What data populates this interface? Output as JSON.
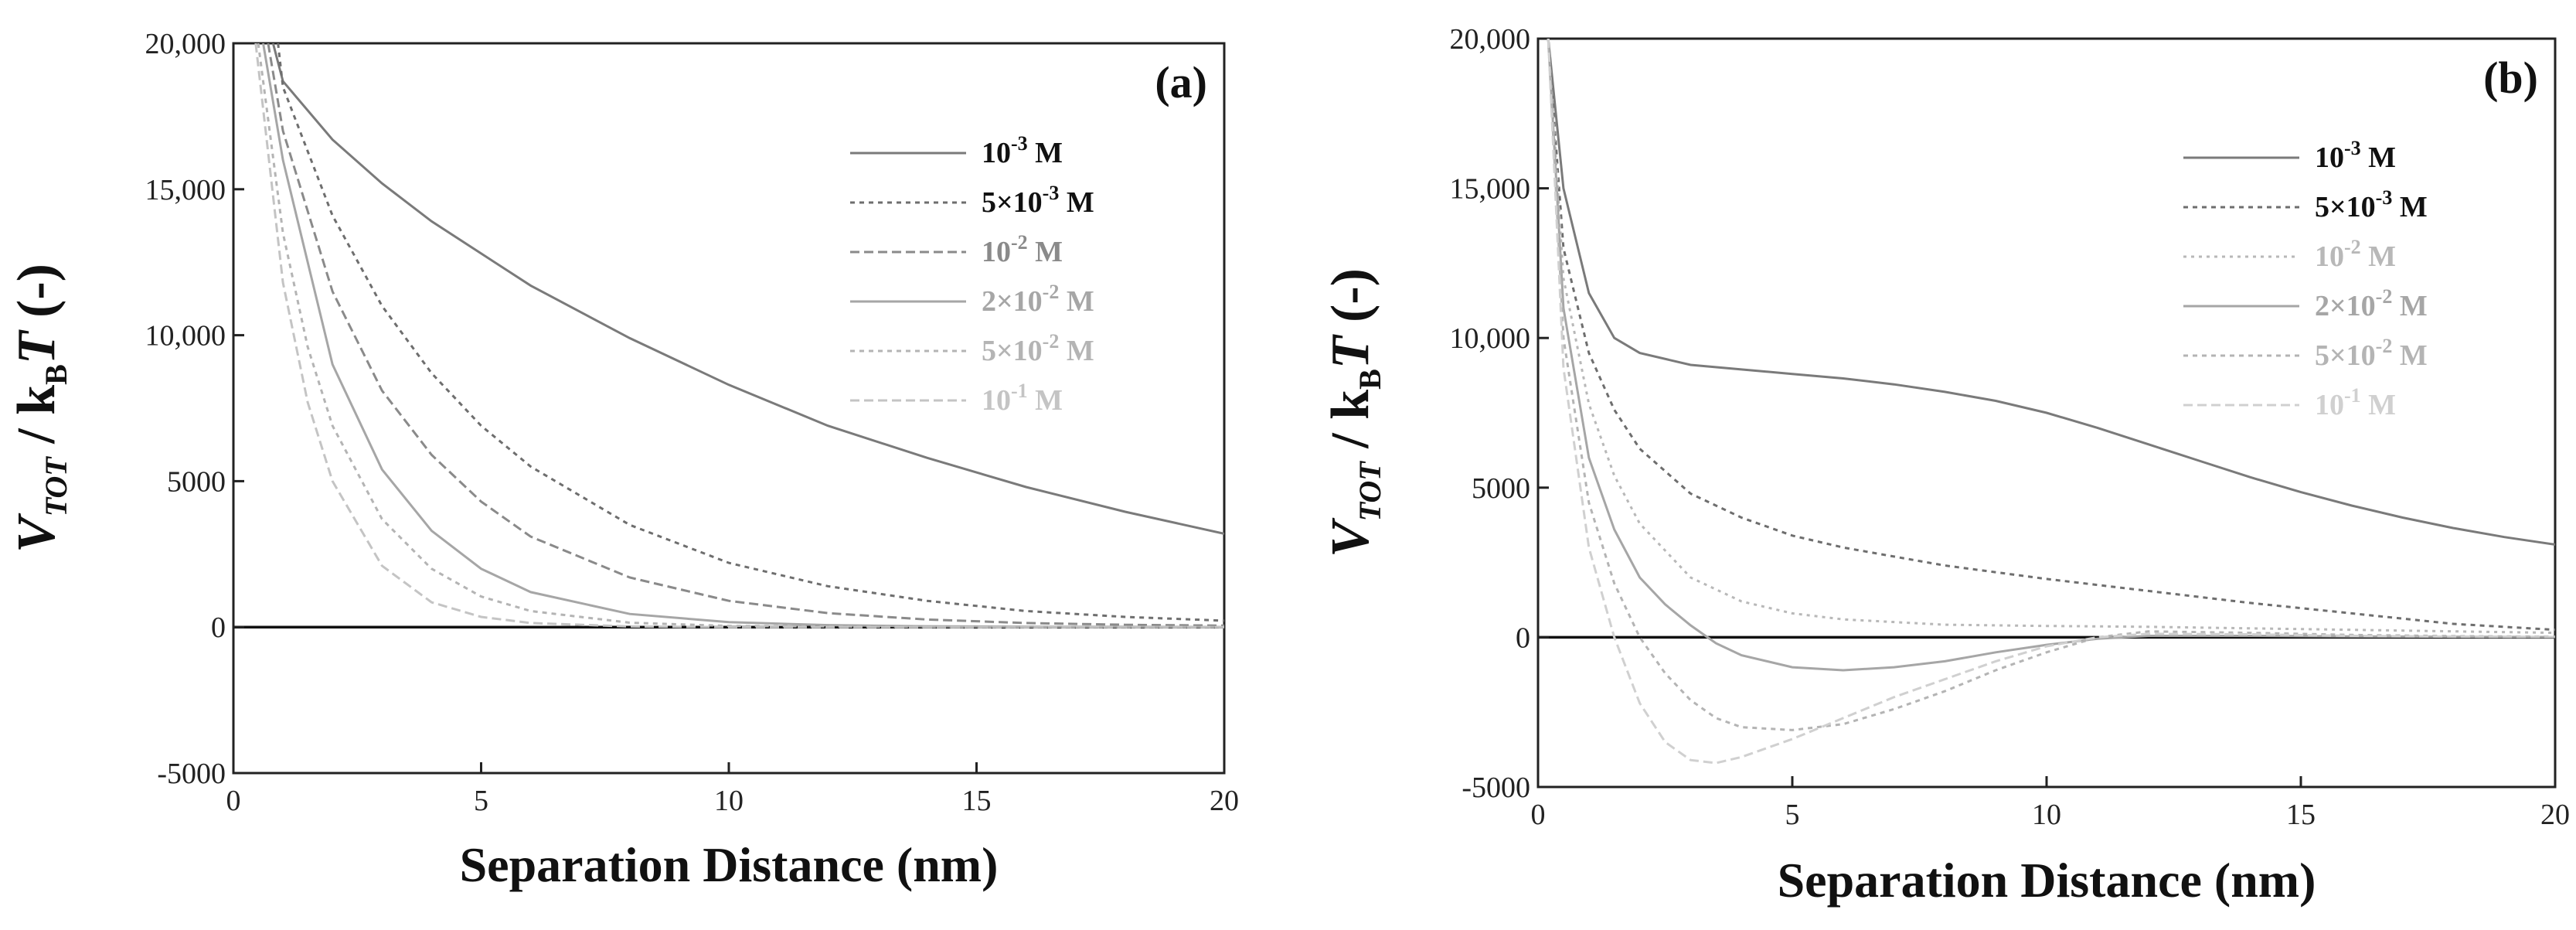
{
  "chart_data": [
    {
      "type": "line",
      "panel_label": "(a)",
      "xlabel": "Separation Distance (nm)",
      "ylabel": {
        "v": "V",
        "sub": "TOT",
        "mid": " / k",
        "sub2": "B",
        "t": "T",
        "unit": " (-)"
      },
      "xlim": [
        0,
        20
      ],
      "ylim": [
        -5000,
        20000
      ],
      "xticks": [
        0,
        5,
        10,
        15,
        20
      ],
      "xtick_labels": [
        "0",
        "5",
        "10",
        "15",
        "20"
      ],
      "yticks": [
        -5000,
        0,
        5000,
        10000,
        15000,
        20000
      ],
      "ytick_labels": [
        "-5000",
        "0",
        "5000",
        "10,000",
        "15,000",
        "20,000"
      ],
      "legend_position": "top-right",
      "series": [
        {
          "name": "10^-3 M",
          "label_base": "10",
          "label_exp": "-3",
          "label_unit": " M",
          "color": "#7a7a7a",
          "dash": "",
          "x": [
            0.8,
            1,
            2,
            3,
            4,
            5,
            6,
            8,
            10,
            12,
            14,
            16,
            18,
            20
          ],
          "y": [
            20000,
            18700,
            16700,
            15200,
            13900,
            12800,
            11700,
            9900,
            8300,
            6900,
            5800,
            4800,
            3950,
            3200
          ]
        },
        {
          "name": "5×10^-3 M",
          "label_base": "5×10",
          "label_exp": "-3",
          "label_unit": " M",
          "color": "#6e6e6e",
          "dash": "6,6",
          "x": [
            0.9,
            1,
            2,
            3,
            4,
            5,
            6,
            8,
            10,
            12,
            14,
            16,
            18,
            20
          ],
          "y": [
            20000,
            18500,
            14100,
            11000,
            8700,
            6900,
            5500,
            3500,
            2200,
            1400,
            900,
            550,
            350,
            220
          ]
        },
        {
          "name": "10^-2 M",
          "label_base": "10",
          "label_exp": "-2",
          "label_unit": " M",
          "color": "#8a8a8a",
          "dash": "12,6",
          "x": [
            0.7,
            1,
            2,
            3,
            4,
            5,
            6,
            8,
            10,
            12,
            14,
            16,
            18,
            20
          ],
          "y": [
            20000,
            17000,
            11500,
            8100,
            5900,
            4300,
            3100,
            1700,
            900,
            480,
            260,
            140,
            80,
            50
          ]
        },
        {
          "name": "2×10^-2 M",
          "label_base": "2×10",
          "label_exp": "-2",
          "label_unit": " M",
          "color": "#a6a6a6",
          "dash": "",
          "x": [
            0.6,
            1,
            2,
            3,
            4,
            5,
            6,
            8,
            10,
            12,
            14,
            16,
            18,
            20
          ],
          "y": [
            20000,
            16000,
            9000,
            5400,
            3300,
            2000,
            1200,
            450,
            170,
            70,
            30,
            15,
            10,
            5
          ]
        },
        {
          "name": "5×10^-2 M",
          "label_base": "5×10",
          "label_exp": "-2",
          "label_unit": " M",
          "color": "#b4b4b4",
          "dash": "6,6",
          "x": [
            0.5,
            1,
            1.5,
            2,
            3,
            4,
            5,
            6,
            8,
            10,
            15,
            20
          ],
          "y": [
            20000,
            13500,
            9600,
            6900,
            3700,
            2000,
            1050,
            550,
            150,
            40,
            0,
            0
          ]
        },
        {
          "name": "10^-1 M",
          "label_base": "10",
          "label_exp": "-1",
          "label_unit": " M",
          "color": "#c4c4c4",
          "dash": "12,6",
          "x": [
            0.45,
            1,
            1.5,
            2,
            3,
            4,
            5,
            6,
            8,
            10,
            20
          ],
          "y": [
            20000,
            11800,
            7700,
            5000,
            2100,
            850,
            350,
            140,
            20,
            0,
            0
          ]
        }
      ]
    },
    {
      "type": "line",
      "panel_label": "(b)",
      "xlabel": "Separation Distance (nm)",
      "ylabel": {
        "v": "V",
        "sub": "TOT",
        "mid": " / k",
        "sub2": "B",
        "t": "T",
        "unit": " (-)"
      },
      "xlim": [
        0,
        20
      ],
      "ylim": [
        -5000,
        20000
      ],
      "xticks": [
        0,
        5,
        10,
        15,
        20
      ],
      "xtick_labels": [
        "0",
        "5",
        "10",
        "15",
        "20"
      ],
      "yticks": [
        -5000,
        0,
        5000,
        10000,
        15000,
        20000
      ],
      "ytick_labels": [
        "-5000",
        "0",
        "5000",
        "10,000",
        "15,000",
        "20,000"
      ],
      "legend_position": "top-right",
      "series": [
        {
          "name": "10^-3 M",
          "label_base": "10",
          "label_exp": "-3",
          "label_unit": " M",
          "color": "#7a7a7a",
          "dash": "",
          "x": [
            0.2,
            0.5,
            1,
            1.5,
            2,
            3,
            4,
            5,
            6,
            7,
            8,
            9,
            10,
            11,
            12,
            13,
            14,
            15,
            16,
            17,
            18,
            19,
            20
          ],
          "y": [
            20000,
            15000,
            11500,
            10000,
            9500,
            9100,
            8950,
            8800,
            8650,
            8450,
            8200,
            7900,
            7500,
            7000,
            6450,
            5900,
            5350,
            4850,
            4400,
            4000,
            3650,
            3350,
            3100
          ]
        },
        {
          "name": "5×10^-3 M",
          "label_base": "5×10",
          "label_exp": "-3",
          "label_unit": " M",
          "color": "#6e6e6e",
          "dash": "6,6",
          "x": [
            0.2,
            0.5,
            1,
            1.5,
            2,
            3,
            4,
            5,
            6,
            7,
            8,
            10,
            12,
            14,
            16,
            18,
            20
          ],
          "y": [
            20000,
            13000,
            9500,
            7600,
            6300,
            4800,
            4000,
            3400,
            3000,
            2700,
            2400,
            1950,
            1550,
            1150,
            800,
            450,
            250
          ]
        },
        {
          "name": "10^-2 M",
          "label_base": "10",
          "label_exp": "-2",
          "label_unit": " M",
          "color": "#b8b8b8",
          "dash": "4,6",
          "x": [
            0.2,
            0.5,
            1,
            1.5,
            2,
            3,
            4,
            5,
            6,
            8,
            10,
            12,
            14,
            16,
            18,
            20
          ],
          "y": [
            20000,
            12000,
            7800,
            5400,
            3800,
            2000,
            1200,
            800,
            600,
            420,
            380,
            350,
            300,
            250,
            200,
            150
          ]
        },
        {
          "name": "2×10^-2 M",
          "label_base": "2×10",
          "label_exp": "-2",
          "label_unit": " M",
          "color": "#a6a6a6",
          "dash": "",
          "x": [
            0.2,
            0.5,
            1,
            1.5,
            2,
            2.5,
            3,
            3.5,
            4,
            5,
            6,
            7,
            8,
            9,
            10,
            11,
            12,
            14,
            16,
            18,
            20
          ],
          "y": [
            20000,
            11000,
            6000,
            3600,
            2000,
            1100,
            400,
            -200,
            -600,
            -1000,
            -1100,
            -1000,
            -800,
            -500,
            -250,
            -50,
            50,
            50,
            30,
            20,
            10
          ]
        },
        {
          "name": "5×10^-2 M",
          "label_base": "5×10",
          "label_exp": "-2",
          "label_unit": " M",
          "color": "#b4b4b4",
          "dash": "6,6",
          "x": [
            0.2,
            0.5,
            1,
            1.5,
            2,
            2.5,
            3,
            3.5,
            4,
            5,
            6,
            7,
            8,
            9,
            10,
            11,
            12,
            14,
            16,
            18,
            20
          ],
          "y": [
            20000,
            10000,
            4500,
            1800,
            0,
            -1200,
            -2100,
            -2700,
            -3000,
            -3100,
            -2900,
            -2400,
            -1800,
            -1100,
            -500,
            0,
            200,
            150,
            80,
            40,
            20
          ]
        },
        {
          "name": "10^-1 M",
          "label_base": "10",
          "label_exp": "-1",
          "label_unit": " M",
          "color": "#d0d0d0",
          "dash": "12,6",
          "x": [
            0.2,
            0.5,
            1,
            1.5,
            2,
            2.5,
            3,
            3.5,
            4,
            5,
            6,
            7,
            8,
            9,
            10,
            11,
            12,
            14,
            16,
            18,
            20
          ],
          "y": [
            20000,
            9000,
            3000,
            0,
            -2200,
            -3500,
            -4100,
            -4200,
            -4000,
            -3400,
            -2700,
            -2000,
            -1400,
            -800,
            -300,
            0,
            120,
            100,
            50,
            20,
            10
          ]
        }
      ]
    }
  ]
}
